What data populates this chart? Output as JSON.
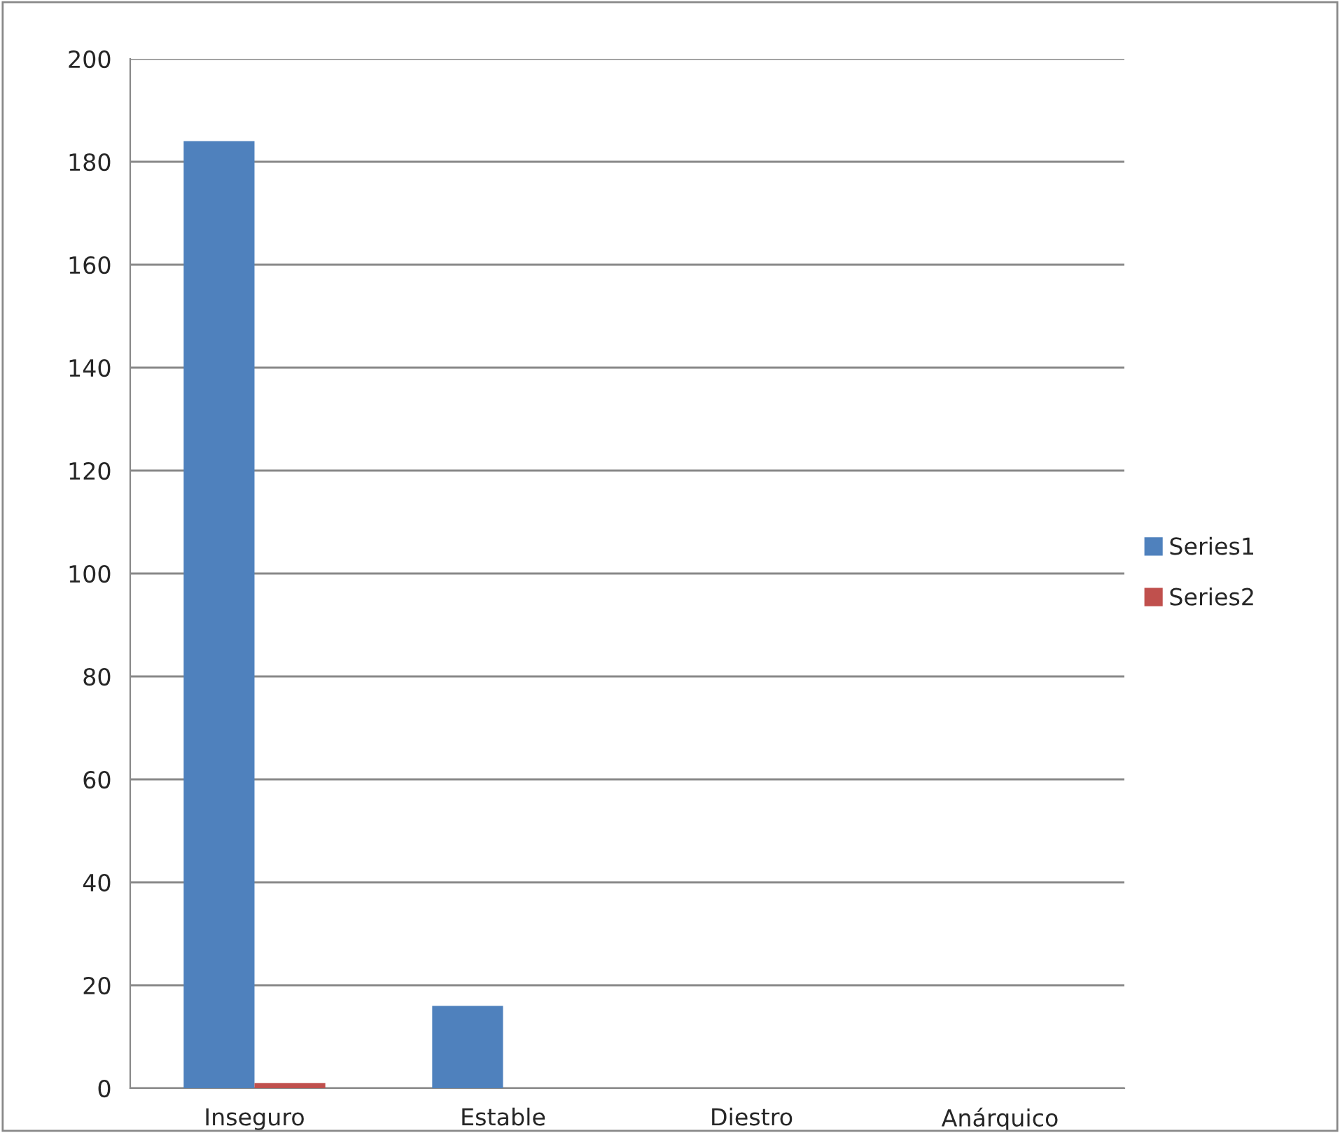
{
  "chart_data": {
    "type": "bar",
    "categories": [
      "Inseguro",
      "Estable",
      "Diestro",
      "Anárquico"
    ],
    "series": [
      {
        "name": "Series1",
        "color": "#4f81bd",
        "values": [
          184,
          16,
          0,
          0
        ]
      },
      {
        "name": "Series2",
        "color": "#c0504d",
        "values": [
          1,
          0,
          0,
          0
        ]
      }
    ],
    "ylim": [
      0,
      200
    ],
    "yticks": [
      0,
      20,
      40,
      60,
      80,
      100,
      120,
      140,
      160,
      180,
      200
    ],
    "grid": "y",
    "legend": "right"
  }
}
